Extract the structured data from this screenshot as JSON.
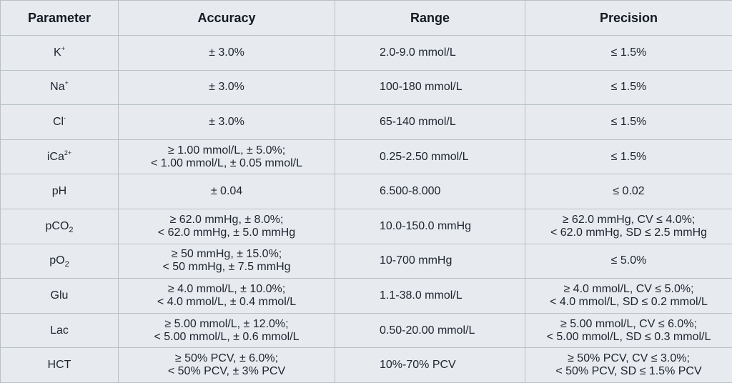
{
  "headers": {
    "parameter": "Parameter",
    "accuracy": "Accuracy",
    "range": "Range",
    "precision": "Precision"
  },
  "rows": [
    {
      "param": {
        "base": "K",
        "sup": "+",
        "sub": ""
      },
      "accuracy": [
        "± 3.0%"
      ],
      "range": "2.0-9.0 mmol/L",
      "precision": [
        "≤ 1.5%"
      ]
    },
    {
      "param": {
        "base": "Na",
        "sup": "+",
        "sub": ""
      },
      "accuracy": [
        "± 3.0%"
      ],
      "range": "100-180 mmol/L",
      "precision": [
        "≤ 1.5%"
      ]
    },
    {
      "param": {
        "base": "Cl",
        "sup": "-",
        "sub": ""
      },
      "accuracy": [
        "± 3.0%"
      ],
      "range": "65-140 mmol/L",
      "precision": [
        "≤ 1.5%"
      ]
    },
    {
      "param": {
        "base": "iCa",
        "sup": "2+",
        "sub": ""
      },
      "accuracy": [
        "≥ 1.00 mmol/L, ± 5.0%;",
        "< 1.00 mmol/L, ± 0.05 mmol/L"
      ],
      "range": "0.25-2.50 mmol/L",
      "precision": [
        "≤ 1.5%"
      ]
    },
    {
      "param": {
        "base": "pH",
        "sup": "",
        "sub": ""
      },
      "accuracy": [
        "± 0.04"
      ],
      "range": "6.500-8.000",
      "precision": [
        "≤ 0.02"
      ]
    },
    {
      "param": {
        "base": "pCO",
        "sup": "",
        "sub": "2"
      },
      "accuracy": [
        "≥ 62.0 mmHg, ± 8.0%;",
        "< 62.0 mmHg, ± 5.0 mmHg"
      ],
      "range": "10.0-150.0 mmHg",
      "precision": [
        "≥ 62.0 mmHg, CV ≤ 4.0%;",
        "< 62.0 mmHg, SD ≤ 2.5 mmHg"
      ]
    },
    {
      "param": {
        "base": "pO",
        "sup": "",
        "sub": "2"
      },
      "accuracy": [
        "≥ 50 mmHg, ± 15.0%;",
        "< 50 mmHg, ± 7.5 mmHg"
      ],
      "range": "10-700 mmHg",
      "precision": [
        "≤ 5.0%"
      ]
    },
    {
      "param": {
        "base": "Glu",
        "sup": "",
        "sub": ""
      },
      "accuracy": [
        "≥ 4.0 mmol/L, ± 10.0%;",
        "< 4.0 mmol/L, ± 0.4 mmol/L"
      ],
      "range": "1.1-38.0 mmol/L",
      "precision": [
        "≥ 4.0 mmol/L, CV ≤ 5.0%;",
        "< 4.0 mmol/L, SD ≤ 0.2 mmol/L"
      ]
    },
    {
      "param": {
        "base": "Lac",
        "sup": "",
        "sub": ""
      },
      "accuracy": [
        "≥ 5.00 mmol/L, ± 12.0%;",
        "< 5.00 mmol/L, ± 0.6 mmol/L"
      ],
      "range": "0.50-20.00 mmol/L",
      "precision": [
        "≥ 5.00 mmol/L, CV ≤ 6.0%;",
        "< 5.00 mmol/L, SD ≤ 0.3 mmol/L"
      ]
    },
    {
      "param": {
        "base": "HCT",
        "sup": "",
        "sub": ""
      },
      "accuracy": [
        "≥ 50% PCV, ± 6.0%;",
        "< 50% PCV, ± 3% PCV"
      ],
      "range": "10%-70% PCV",
      "precision": [
        "≥ 50% PCV, CV ≤ 3.0%;",
        "< 50% PCV, SD ≤ 1.5% PCV"
      ]
    }
  ]
}
